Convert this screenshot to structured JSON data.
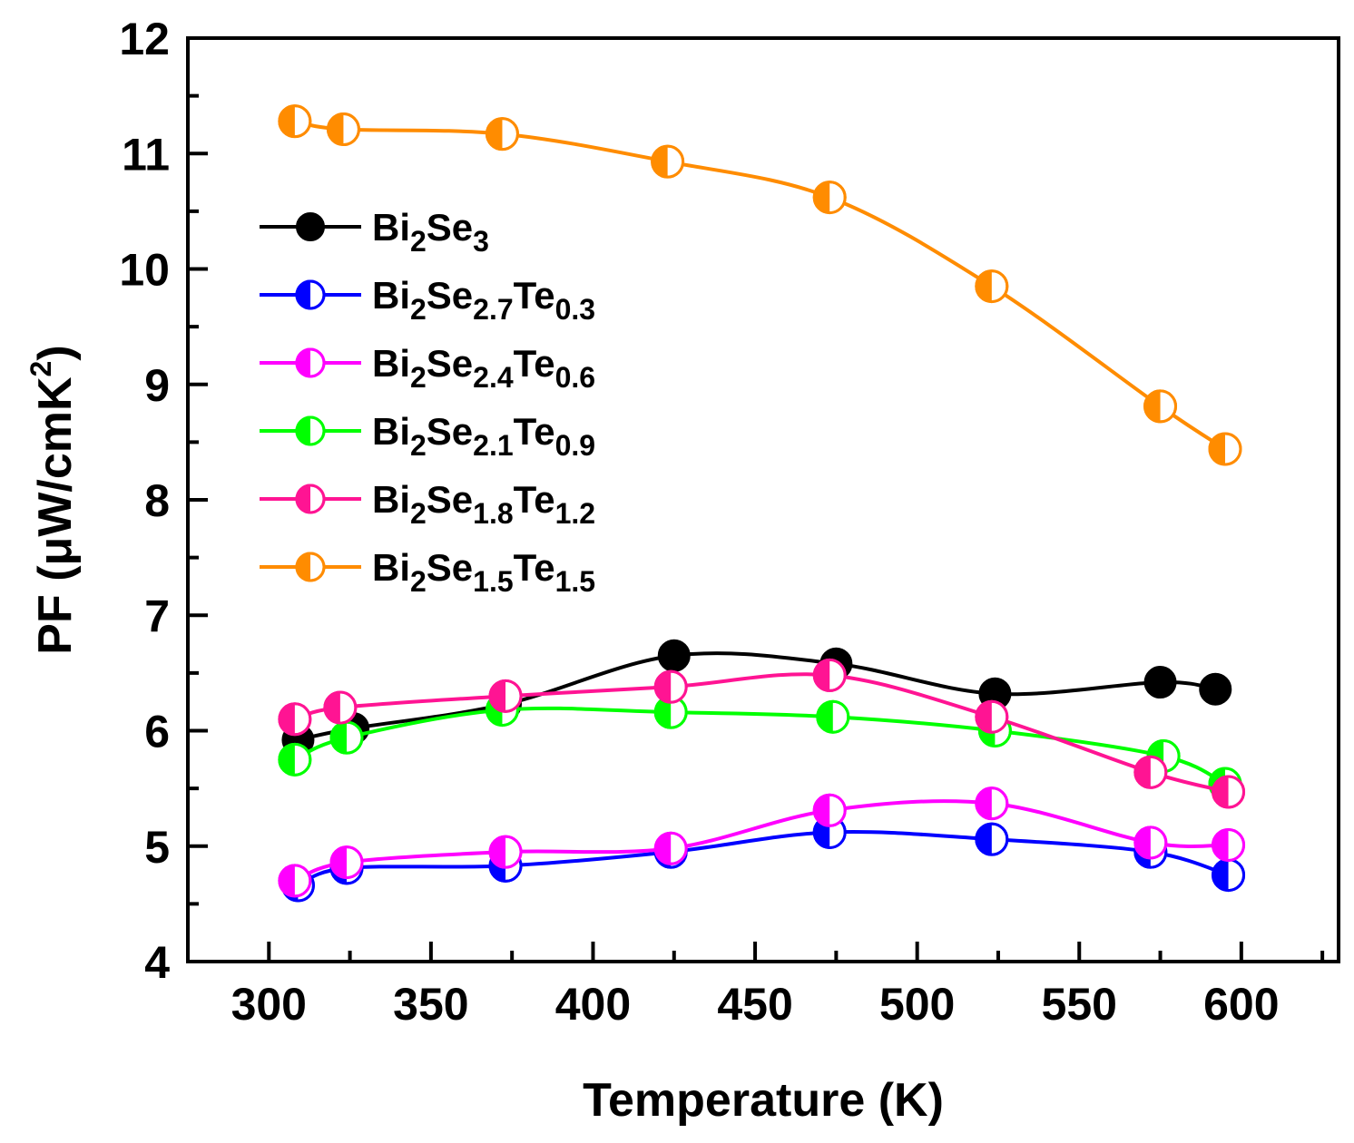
{
  "chart_data": {
    "type": "line",
    "title": "",
    "xlabel": "Temperature (K)",
    "ylabel": {
      "prefix": "PF (μW/cmK",
      "sup": "2",
      "suffix": ")"
    },
    "xlim": [
      275,
      630
    ],
    "ylim": [
      4,
      12
    ],
    "x_ticks": [
      300,
      350,
      400,
      450,
      500,
      550,
      600
    ],
    "y_ticks": [
      4,
      5,
      6,
      7,
      8,
      9,
      10,
      11,
      12
    ],
    "grid": false,
    "legend_position": "upper-left",
    "series": [
      {
        "name": "Bi2Se3",
        "label_parts": [
          [
            "Bi",
            ""
          ],
          [
            "2",
            "sub"
          ],
          [
            "Se",
            ""
          ],
          [
            "3",
            "sub"
          ]
        ],
        "color": "#000000",
        "marker": "filled",
        "x": [
          309,
          326,
          373,
          425,
          475,
          524,
          575,
          592
        ],
        "y": [
          5.92,
          6.02,
          6.23,
          6.65,
          6.58,
          6.32,
          6.42,
          6.36
        ]
      },
      {
        "name": "Bi2Se2.7Te0.3",
        "label_parts": [
          [
            "Bi",
            ""
          ],
          [
            "2",
            "sub"
          ],
          [
            "Se",
            ""
          ],
          [
            "2.7",
            "sub"
          ],
          [
            "Te",
            ""
          ],
          [
            "0.3",
            "sub"
          ]
        ],
        "color": "#0000ff",
        "marker": "half",
        "x": [
          309,
          324,
          373,
          424,
          473,
          523,
          572,
          596
        ],
        "y": [
          4.66,
          4.81,
          4.83,
          4.95,
          5.12,
          5.06,
          4.95,
          4.75
        ]
      },
      {
        "name": "Bi2Se2.4Te0.6",
        "label_parts": [
          [
            "Bi",
            ""
          ],
          [
            "2",
            "sub"
          ],
          [
            "Se",
            ""
          ],
          [
            "2.4",
            "sub"
          ],
          [
            "Te",
            ""
          ],
          [
            "0.6",
            "sub"
          ]
        ],
        "color": "#ff00ff",
        "marker": "half",
        "x": [
          308,
          324,
          373,
          424,
          473,
          523,
          572,
          596
        ],
        "y": [
          4.7,
          4.86,
          4.95,
          4.98,
          5.31,
          5.37,
          5.03,
          5.01
        ]
      },
      {
        "name": "Bi2Se2.1Te0.9",
        "label_parts": [
          [
            "Bi",
            ""
          ],
          [
            "2",
            "sub"
          ],
          [
            "Se",
            ""
          ],
          [
            "2.1",
            "sub"
          ],
          [
            "Te",
            ""
          ],
          [
            "0.9",
            "sub"
          ]
        ],
        "color": "#00ff00",
        "marker": "half",
        "x": [
          308,
          324,
          372,
          424,
          474,
          524,
          576,
          595
        ],
        "y": [
          5.75,
          5.94,
          6.18,
          6.16,
          6.12,
          6.0,
          5.78,
          5.54
        ]
      },
      {
        "name": "Bi2Se1.8Te1.2",
        "label_parts": [
          [
            "Bi",
            ""
          ],
          [
            "2",
            "sub"
          ],
          [
            "Se",
            ""
          ],
          [
            "1.8",
            "sub"
          ],
          [
            "Te",
            ""
          ],
          [
            "1.2",
            "sub"
          ]
        ],
        "color": "#ff1493",
        "marker": "half",
        "x": [
          308,
          322,
          373,
          424,
          473,
          523,
          572,
          596
        ],
        "y": [
          6.1,
          6.2,
          6.3,
          6.38,
          6.48,
          6.12,
          5.64,
          5.47
        ]
      },
      {
        "name": "Bi2Se1.5Te1.5",
        "label_parts": [
          [
            "Bi",
            ""
          ],
          [
            "2",
            "sub"
          ],
          [
            "Se",
            ""
          ],
          [
            "1.5",
            "sub"
          ],
          [
            "Te",
            ""
          ],
          [
            "1.5",
            "sub"
          ]
        ],
        "color": "#ff8c00",
        "marker": "half",
        "x": [
          308,
          323,
          372,
          423,
          473,
          523,
          575,
          595
        ],
        "y": [
          11.28,
          11.21,
          11.17,
          10.93,
          10.62,
          9.85,
          8.81,
          8.44
        ]
      }
    ]
  }
}
